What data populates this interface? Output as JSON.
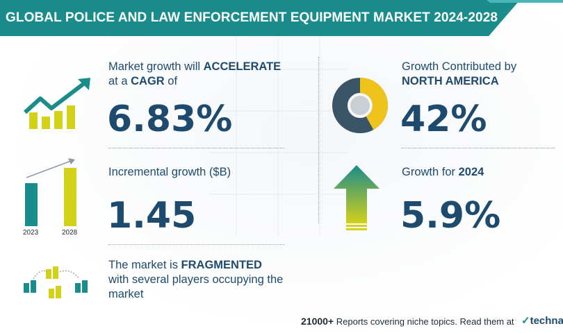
{
  "header": {
    "title": "GLOBAL POLICE AND LAW ENFORCEMENT EQUIPMENT MARKET 2024-2028"
  },
  "cagr": {
    "line1_prefix": "Market growth will ",
    "line1_bold": "ACCELERATE",
    "line2_prefix": "at a ",
    "line2_bold": "CAGR",
    "line2_suffix": " of",
    "value": "6.83%"
  },
  "incremental": {
    "label": "Incremental growth ($B)",
    "value": "1.45",
    "bar_years": [
      "2023",
      "2028"
    ]
  },
  "market": {
    "line1_prefix": "The market is ",
    "line1_bold": "FRAGMENTED",
    "line2": "with several players occupying the",
    "line3": "market"
  },
  "region": {
    "line1": "Growth Contributed by",
    "line2_bold": "NORTH AMERICA",
    "value": "42%",
    "donut_share": 0.42
  },
  "year_growth": {
    "label_prefix": "Growth for ",
    "label_bold": "2024",
    "value": "5.9%"
  },
  "footer": {
    "count": "21000+",
    "text": "Reports covering niche topics. Read them at",
    "logo": "technav"
  },
  "colors": {
    "teal": "#1a8c8c",
    "navy": "#1e4a6d",
    "yellow": "#d4d11a",
    "donut_gold": "#f0c21c",
    "donut_dark": "#3a5468"
  }
}
